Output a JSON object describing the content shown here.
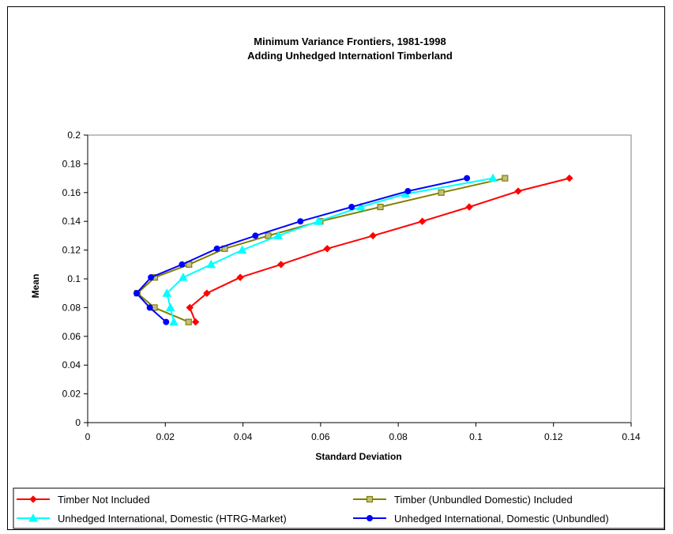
{
  "chart_data": {
    "type": "line",
    "title": "Minimum Variance Frontiers, 1981-1998",
    "subtitle": "Adding Unhedged Internationl Timberland",
    "xlabel": "Standard Deviation",
    "ylabel": "Mean",
    "xlim": [
      0,
      0.14
    ],
    "ylim": [
      0,
      0.2
    ],
    "xticks": [
      "0",
      "0.02",
      "0.04",
      "0.06",
      "0.08",
      "0.1",
      "0.12",
      "0.14"
    ],
    "yticks": [
      "0",
      "0.02",
      "0.04",
      "0.06",
      "0.08",
      "0.1",
      "0.12",
      "0.14",
      "0.16",
      "0.18",
      "0.2"
    ],
    "grid": false,
    "legend_position": "bottom",
    "series": [
      {
        "name": "Timber Not Included",
        "color": "#ff0000",
        "marker": "diamond",
        "points": [
          [
            0.0278,
            0.07
          ],
          [
            0.0263,
            0.08
          ],
          [
            0.0307,
            0.09
          ],
          [
            0.0393,
            0.101
          ],
          [
            0.0498,
            0.11
          ],
          [
            0.0617,
            0.121
          ],
          [
            0.0735,
            0.13
          ],
          [
            0.0862,
            0.14
          ],
          [
            0.0983,
            0.15
          ],
          [
            0.1109,
            0.161
          ],
          [
            0.1241,
            0.17
          ]
        ]
      },
      {
        "name": "Timber (Unbundled Domestic) Included",
        "color": "#808000",
        "marker": "square",
        "points": [
          [
            0.026,
            0.07
          ],
          [
            0.0172,
            0.08
          ],
          [
            0.0128,
            0.09
          ],
          [
            0.0173,
            0.101
          ],
          [
            0.0261,
            0.11
          ],
          [
            0.0353,
            0.121
          ],
          [
            0.0465,
            0.13
          ],
          [
            0.0599,
            0.14
          ],
          [
            0.0754,
            0.15
          ],
          [
            0.0911,
            0.16
          ],
          [
            0.1075,
            0.17
          ]
        ]
      },
      {
        "name": "Unhedged International, Domestic (HTRG-Market)",
        "color": "#00ffff",
        "marker": "triangle",
        "points": [
          [
            0.0222,
            0.07
          ],
          [
            0.0213,
            0.08
          ],
          [
            0.0204,
            0.09
          ],
          [
            0.0246,
            0.101
          ],
          [
            0.0318,
            0.11
          ],
          [
            0.0398,
            0.12
          ],
          [
            0.0491,
            0.13
          ],
          [
            0.0594,
            0.14
          ],
          [
            0.0704,
            0.15
          ],
          [
            0.0819,
            0.159
          ],
          [
            0.1044,
            0.17
          ]
        ]
      },
      {
        "name": "Unhedged International, Domestic (Unbundled)",
        "color": "#0000ff",
        "marker": "circle",
        "points": [
          [
            0.0202,
            0.07
          ],
          [
            0.016,
            0.08
          ],
          [
            0.0126,
            0.09
          ],
          [
            0.0163,
            0.101
          ],
          [
            0.0243,
            0.11
          ],
          [
            0.0333,
            0.121
          ],
          [
            0.0432,
            0.13
          ],
          [
            0.0548,
            0.14
          ],
          [
            0.068,
            0.15
          ],
          [
            0.0825,
            0.161
          ],
          [
            0.0977,
            0.17
          ]
        ]
      }
    ]
  }
}
